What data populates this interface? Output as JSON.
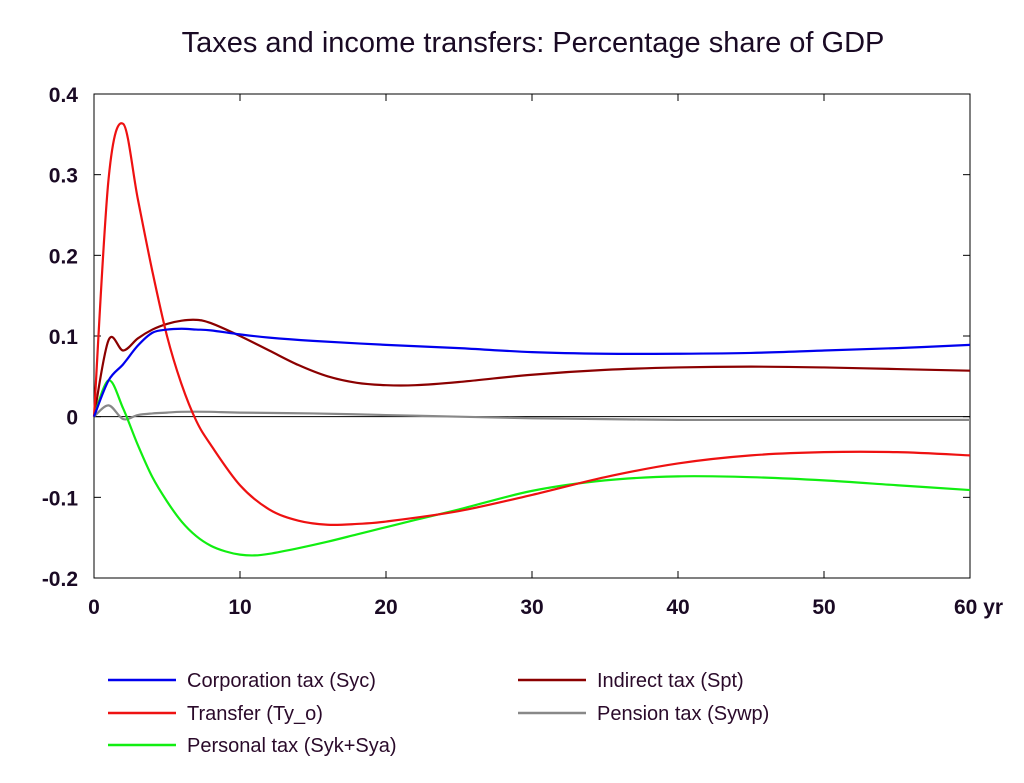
{
  "chart_data": {
    "type": "line",
    "title": "Taxes and income transfers: Percentage share of GDP",
    "xlabel": "",
    "ylabel": "",
    "xlim": [
      0,
      60
    ],
    "ylim": [
      -0.2,
      0.4
    ],
    "x_ticks": [
      0,
      10,
      20,
      30,
      40,
      50,
      60
    ],
    "x_tick_labels": [
      "0",
      "10",
      "20",
      "30",
      "40",
      "50",
      "60 yr"
    ],
    "y_ticks": [
      -0.2,
      -0.1,
      0,
      0.1,
      0.2,
      0.3,
      0.4
    ],
    "y_tick_labels": [
      "-0.2",
      "-0.1",
      "0",
      "0.1",
      "0.2",
      "0.3",
      "0.4"
    ],
    "grid": false,
    "legend_position": "bottom",
    "series": [
      {
        "name": "Corporation tax (Syc)",
        "color": "#0000ee",
        "x": [
          0,
          1,
          2,
          3,
          4,
          5,
          6,
          7,
          8,
          10,
          12,
          15,
          20,
          25,
          30,
          35,
          40,
          45,
          50,
          55,
          60
        ],
        "y": [
          0,
          0.045,
          0.065,
          0.088,
          0.104,
          0.108,
          0.109,
          0.108,
          0.107,
          0.102,
          0.098,
          0.094,
          0.089,
          0.085,
          0.08,
          0.078,
          0.078,
          0.079,
          0.082,
          0.085,
          0.089
        ]
      },
      {
        "name": "Indirect tax (Spt)",
        "color": "#8b0000",
        "x": [
          0,
          1,
          2,
          3,
          4,
          5,
          6,
          7,
          8,
          10,
          12,
          14,
          16,
          18,
          20,
          22,
          25,
          30,
          35,
          40,
          45,
          50,
          55,
          60
        ],
        "y": [
          0,
          0.095,
          0.082,
          0.097,
          0.108,
          0.115,
          0.119,
          0.12,
          0.116,
          0.1,
          0.082,
          0.064,
          0.05,
          0.042,
          0.039,
          0.039,
          0.043,
          0.052,
          0.058,
          0.061,
          0.062,
          0.061,
          0.059,
          0.057
        ]
      },
      {
        "name": "Transfer (Ty_o)",
        "color": "#ee1111",
        "x": [
          0,
          1,
          2,
          3,
          4,
          5,
          6,
          7,
          8,
          10,
          12,
          14,
          16,
          18,
          20,
          25,
          30,
          35,
          40,
          45,
          50,
          55,
          60
        ],
        "y": [
          0,
          0.295,
          0.363,
          0.27,
          0.18,
          0.1,
          0.04,
          -0.005,
          -0.035,
          -0.085,
          -0.115,
          -0.129,
          -0.134,
          -0.133,
          -0.13,
          -0.117,
          -0.097,
          -0.075,
          -0.058,
          -0.048,
          -0.044,
          -0.044,
          -0.048
        ]
      },
      {
        "name": "Pension tax (Sywp)",
        "color": "#888888",
        "x": [
          0,
          1,
          2,
          3,
          4,
          5,
          6,
          8,
          10,
          15,
          20,
          25,
          30,
          35,
          40,
          45,
          50,
          55,
          60
        ],
        "y": [
          0,
          0.014,
          -0.003,
          0.002,
          0.004,
          0.005,
          0.006,
          0.006,
          0.005,
          0.004,
          0.002,
          0,
          -0.002,
          -0.003,
          -0.004,
          -0.004,
          -0.004,
          -0.004,
          -0.004
        ]
      },
      {
        "name": "Personal tax (Syk+Sya)",
        "color": "#11ee11",
        "x": [
          0,
          1,
          2,
          3,
          4,
          5,
          6,
          7,
          8,
          9,
          10,
          11,
          12,
          14,
          16,
          18,
          20,
          22,
          25,
          30,
          35,
          40,
          45,
          50,
          55,
          60
        ],
        "y": [
          0,
          0.045,
          0.01,
          -0.035,
          -0.075,
          -0.105,
          -0.13,
          -0.148,
          -0.16,
          -0.167,
          -0.171,
          -0.172,
          -0.17,
          -0.163,
          -0.155,
          -0.146,
          -0.137,
          -0.128,
          -0.115,
          -0.092,
          -0.079,
          -0.074,
          -0.075,
          -0.079,
          -0.085,
          -0.091
        ]
      }
    ]
  }
}
